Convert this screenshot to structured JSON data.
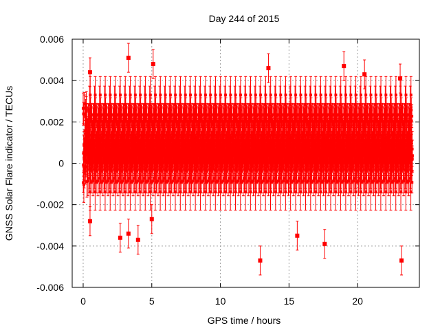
{
  "chart_data": {
    "type": "scatter",
    "title": "Day 244 of 2015",
    "xlabel": "GPS time / hours",
    "ylabel": "GNSS Solar Flare indicator / TECUs",
    "xlim": [
      -0.8,
      24.5
    ],
    "ylim": [
      -0.006,
      0.006
    ],
    "x_ticks": [
      "0",
      "5",
      "10",
      "15",
      "20"
    ],
    "y_ticks": [
      "-0.006",
      "-0.004",
      "-0.002",
      "0",
      "0.002",
      "0.004",
      "0.006"
    ],
    "grid": true,
    "series_color": "#ff0000",
    "error_bars": true,
    "typical_error": 0.0007,
    "sampling_interval_hours": 0.0083,
    "bulk_range": [
      -0.0015,
      0.0027
    ],
    "notable_points": [
      {
        "x": 0.1,
        "y": 0.0005
      },
      {
        "x": 0.5,
        "y": 0.0044
      },
      {
        "x": 0.5,
        "y": -0.0028
      },
      {
        "x": 2.7,
        "y": -0.0036
      },
      {
        "x": 3.3,
        "y": 0.0051
      },
      {
        "x": 3.3,
        "y": -0.0034
      },
      {
        "x": 4.0,
        "y": -0.0037
      },
      {
        "x": 5.1,
        "y": 0.0048
      },
      {
        "x": 5.0,
        "y": -0.0027
      },
      {
        "x": 12.9,
        "y": -0.0047
      },
      {
        "x": 13.5,
        "y": 0.0046
      },
      {
        "x": 15.6,
        "y": -0.0035
      },
      {
        "x": 17.6,
        "y": -0.0039
      },
      {
        "x": 19.0,
        "y": 0.0047
      },
      {
        "x": 20.5,
        "y": 0.0043
      },
      {
        "x": 23.2,
        "y": -0.0047
      },
      {
        "x": 23.1,
        "y": 0.0041
      }
    ]
  }
}
